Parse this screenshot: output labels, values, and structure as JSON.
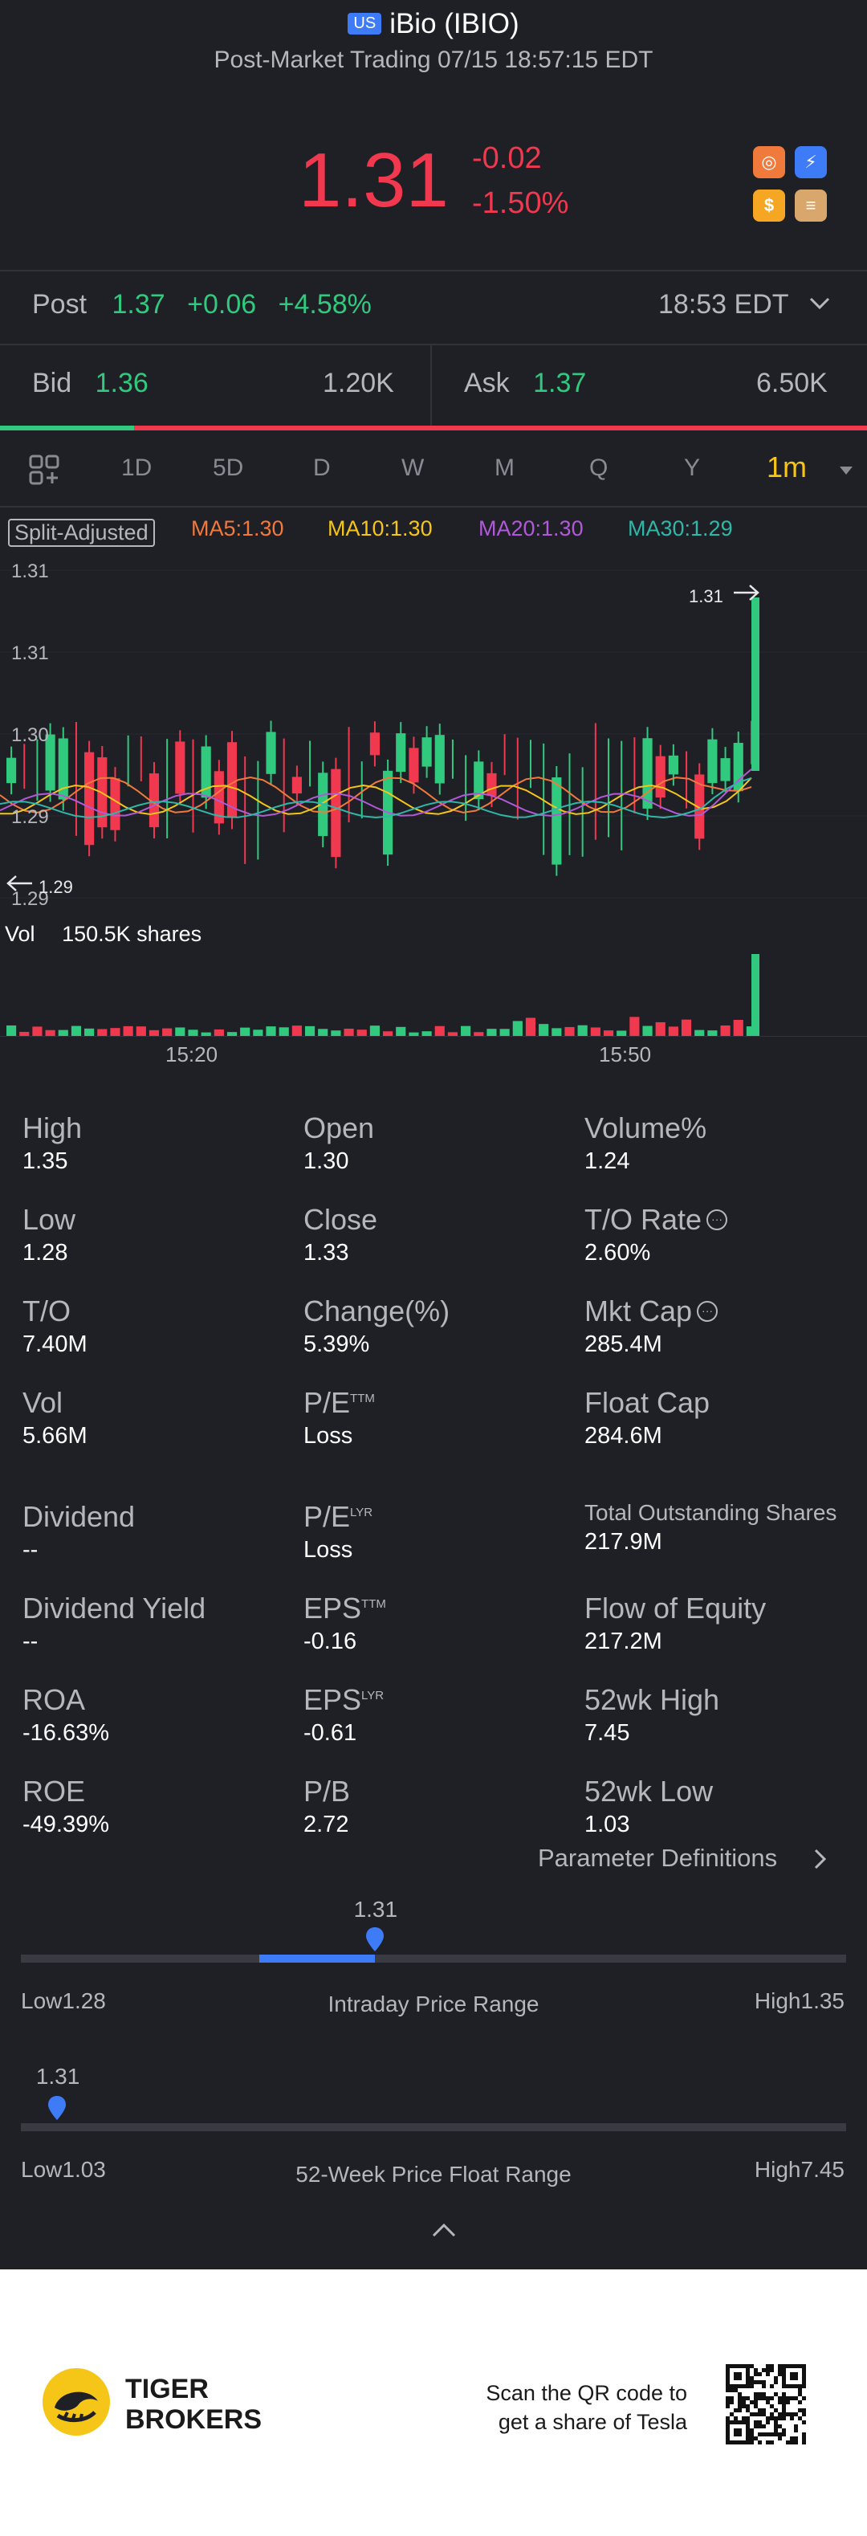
{
  "header": {
    "market_badge": "US",
    "title": "iBio (IBIO)",
    "subtitle": "Post-Market Trading 07/15 18:57:15 EDT"
  },
  "quote": {
    "price": "1.31",
    "change": "-0.02",
    "change_pct": "-1.50%"
  },
  "post": {
    "label": "Post",
    "price": "1.37",
    "change": "+0.06",
    "change_pct": "+4.58%",
    "time": "18:53 EDT"
  },
  "bidask": {
    "bid_label": "Bid",
    "bid_price": "1.36",
    "bid_size": "1.20K",
    "ask_label": "Ask",
    "ask_price": "1.37",
    "ask_size": "6.50K",
    "bid_fraction": 0.155
  },
  "tabs": [
    "1D",
    "5D",
    "D",
    "W",
    "M",
    "Q",
    "Y",
    "1m"
  ],
  "active_tab": "1m",
  "chart": {
    "split_label": "Split-Adjusted",
    "ma5": "MA5:1.30",
    "ma10": "MA10:1.30",
    "ma20": "MA20:1.30",
    "ma30": "MA30:1.29",
    "y_labels": [
      "1.31",
      "1.31",
      "1.30",
      "1.29",
      "1.29"
    ],
    "last_label": "1.31",
    "low_label": "1.29",
    "vol_label": "Vol",
    "vol_value": "150.5K shares",
    "x_labels": [
      "15:20",
      "15:50"
    ],
    "colors": {
      "up": "#30c97e",
      "down": "#f0384f",
      "ma5": "#f07a3c",
      "ma10": "#f5c518",
      "ma20": "#b05ad8",
      "ma30": "#2fb7a8"
    }
  },
  "chart_data": {
    "type": "candlestick",
    "title": "",
    "interval": "1m",
    "x_ticks": [
      "15:20",
      "15:50"
    ],
    "y_ticks": [
      "1.31",
      "1.31",
      "1.30",
      "1.29",
      "1.29"
    ],
    "last_price": 1.31,
    "low": 1.29,
    "latest_volume": "150.5K shares",
    "moving_averages": [
      {
        "name": "MA5",
        "value": 1.3
      },
      {
        "name": "MA10",
        "value": 1.3
      },
      {
        "name": "MA20",
        "value": 1.3
      },
      {
        "name": "MA30",
        "value": 1.29
      }
    ]
  },
  "stats": [
    {
      "label": "High",
      "value": "1.35"
    },
    {
      "label": "Open",
      "value": "1.30"
    },
    {
      "label": "Volume%",
      "value": "1.24"
    },
    {
      "label": "Low",
      "value": "1.28"
    },
    {
      "label": "Close",
      "value": "1.33"
    },
    {
      "label": "T/O Rate",
      "value": "2.60%"
    },
    {
      "label": "T/O",
      "value": "7.40M"
    },
    {
      "label": "Change(%)",
      "value": "5.39%"
    },
    {
      "label": "Mkt Cap",
      "value": "285.4M"
    },
    {
      "label": "Vol",
      "value": "5.66M"
    },
    {
      "label": "P/E",
      "sup": "TTM",
      "value": "Loss"
    },
    {
      "label": "Float Cap",
      "value": "284.6M"
    },
    {
      "label": "Dividend",
      "value": "--"
    },
    {
      "label": "P/E",
      "sup": "LYR",
      "value": "Loss"
    },
    {
      "label": "Total Outstanding Shares",
      "value": "217.9M"
    },
    {
      "label": "Dividend Yield",
      "value": "--"
    },
    {
      "label": "EPS",
      "sup": "TTM",
      "value": "-0.16"
    },
    {
      "label": "Flow of Equity",
      "value": "217.2M"
    },
    {
      "label": "ROA",
      "value": "-16.63%"
    },
    {
      "label": "EPS",
      "sup": "LYR",
      "value": "-0.61"
    },
    {
      "label": "52wk High",
      "value": "7.45"
    },
    {
      "label": "ROE",
      "value": "-49.39%"
    },
    {
      "label": "P/B",
      "value": "2.72"
    },
    {
      "label": "52wk Low",
      "value": "1.03"
    }
  ],
  "param_defs": "Parameter Definitions",
  "intraday": {
    "current": "1.31",
    "low": "Low1.28",
    "high": "High1.35",
    "title": "Intraday Price Range",
    "low_value": 1.28,
    "high_value": 1.35,
    "current_value": 1.31
  },
  "week52": {
    "current": "1.31",
    "low": "Low1.03",
    "high": "High7.45",
    "title": "52-Week Price Float Range",
    "low_value": 1.03,
    "high_value": 7.45,
    "current_value": 1.31
  },
  "footer": {
    "brand_line1": "TIGER",
    "brand_line2": "BROKERS",
    "qr_line1": "Scan the QR code to",
    "qr_line2": "get a share of Tesla"
  }
}
